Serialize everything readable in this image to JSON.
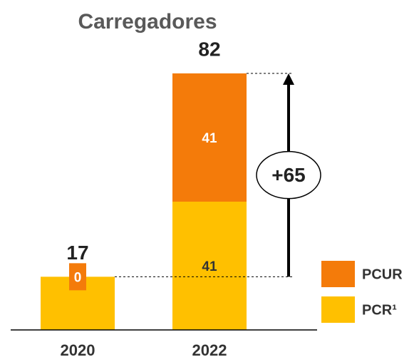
{
  "chart_data": {
    "type": "stacked_bar",
    "title": "Carregadores",
    "categories": [
      "2020",
      "2022"
    ],
    "series": [
      {
        "name": "PCR¹",
        "color": "#FFC000",
        "values": [
          17,
          41
        ]
      },
      {
        "name": "PCUR",
        "color": "#F47B0A",
        "values": [
          0,
          41
        ]
      }
    ],
    "totals": [
      17,
      82
    ],
    "annotation": "+65",
    "legend": "right"
  }
}
